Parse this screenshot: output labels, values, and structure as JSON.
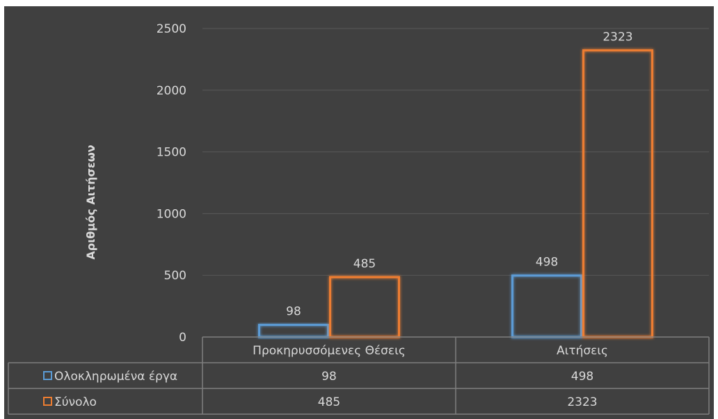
{
  "chart_data": {
    "type": "bar",
    "title": "",
    "ylabel": "Αριθμός Αιτήσεων",
    "xlabel": "",
    "ylim": [
      0,
      2500
    ],
    "yticks": [
      0,
      500,
      1000,
      1500,
      2000,
      2500
    ],
    "grid": true,
    "legend": "data-table",
    "categories": [
      "Προκηρυσσόμενες Θέσεις",
      "Αιτήσεις"
    ],
    "series": [
      {
        "name": "Ολοκληρωμένα έργα",
        "values": [
          98,
          498
        ],
        "color": "#5b9bd5"
      },
      {
        "name": "Σύνολο",
        "values": [
          485,
          2323
        ],
        "color": "#ed7d31"
      }
    ]
  },
  "colors": {
    "background": "#404040",
    "gridline": "#595959",
    "text": "#d9d9d9",
    "table_border": "#7f7f7f"
  }
}
